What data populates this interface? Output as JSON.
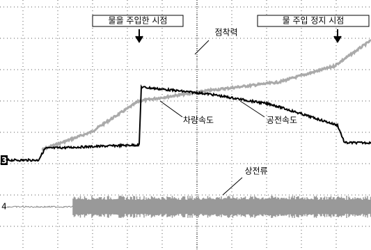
{
  "annotations": {
    "water_start": "물을 주입한 시점",
    "water_stop": "물 주입 정지 시점"
  },
  "labels": {
    "adhesion": "점착력",
    "vehicle_speed": "차량속도",
    "wheel_speed": "공전속도",
    "phase_current": "상전류"
  },
  "channels": [
    "3",
    "4"
  ]
}
